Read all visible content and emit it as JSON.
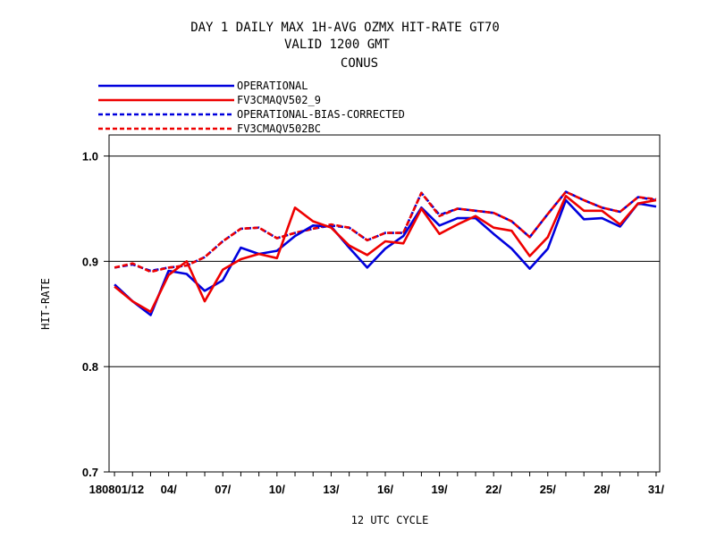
{
  "chart_data": {
    "type": "line",
    "title_lines": [
      "DAY 1 DAILY MAX   1H-AVG OZMX HIT-RATE GT70",
      "VALID 1200 GMT",
      "CONUS"
    ],
    "xlabel": "12 UTC CYCLE",
    "ylabel": "HIT-RATE",
    "ylim": [
      0.7,
      1.02
    ],
    "yticks": [
      0.7,
      0.8,
      0.9,
      1.0
    ],
    "ytick_labels": [
      "0.7",
      "0.8",
      "0.9",
      "1.0"
    ],
    "xlim": [
      0.7,
      31.2
    ],
    "xticks": [
      1,
      4,
      7,
      10,
      13,
      16,
      19,
      22,
      25,
      28,
      31
    ],
    "xtick_labels": [
      "180801/12",
      "04/",
      "07/",
      "10/",
      "13/",
      "16/",
      "19/",
      "22/",
      "25/",
      "28/",
      "31/"
    ],
    "grid": "horizontal",
    "legend_position": "top-left",
    "x": [
      1,
      2,
      3,
      4,
      5,
      6,
      7,
      8,
      9,
      10,
      11,
      12,
      13,
      14,
      15,
      16,
      17,
      18,
      19,
      20,
      21,
      22,
      23,
      24,
      25,
      26,
      27,
      28,
      29,
      30,
      31
    ],
    "series": [
      {
        "name": "OPERATIONAL",
        "color": "#0000dd",
        "dash": "solid",
        "values": [
          0.878,
          0.862,
          0.849,
          0.891,
          0.888,
          0.872,
          0.882,
          0.913,
          0.907,
          0.91,
          0.924,
          0.934,
          0.933,
          0.913,
          0.894,
          0.912,
          0.924,
          0.951,
          0.934,
          0.941,
          0.941,
          0.926,
          0.912,
          0.893,
          0.912,
          0.958,
          0.94,
          0.941,
          0.933,
          0.955,
          0.952
        ]
      },
      {
        "name": "FV3CMAQV502_9",
        "color": "#ee0000",
        "dash": "solid",
        "values": [
          0.876,
          0.862,
          0.852,
          0.887,
          0.9,
          0.862,
          0.892,
          0.902,
          0.907,
          0.903,
          0.951,
          0.938,
          0.932,
          0.915,
          0.906,
          0.919,
          0.917,
          0.95,
          0.926,
          0.935,
          0.943,
          0.932,
          0.929,
          0.905,
          0.923,
          0.962,
          0.948,
          0.948,
          0.935,
          0.955,
          0.958
        ]
      },
      {
        "name": "OPERATIONAL-BIAS-CORRECTED",
        "color": "#0000dd",
        "dash": "dashed",
        "values": [
          0.894,
          0.897,
          0.891,
          0.894,
          0.896,
          0.904,
          0.919,
          0.931,
          0.932,
          0.922,
          0.927,
          0.931,
          0.934,
          0.932,
          0.92,
          0.927,
          0.927,
          0.965,
          0.944,
          0.95,
          0.948,
          0.946,
          0.938,
          0.923,
          0.945,
          0.966,
          0.958,
          0.951,
          0.947,
          0.961,
          0.958
        ]
      },
      {
        "name": "FV3CMAQV502BC",
        "color": "#ee0000",
        "dash": "dashed",
        "values": [
          0.894,
          0.898,
          0.89,
          0.894,
          0.896,
          0.904,
          0.919,
          0.931,
          0.932,
          0.922,
          0.927,
          0.931,
          0.935,
          0.932,
          0.92,
          0.927,
          0.927,
          0.965,
          0.943,
          0.95,
          0.948,
          0.946,
          0.938,
          0.923,
          0.945,
          0.966,
          0.958,
          0.951,
          0.947,
          0.961,
          0.959
        ]
      }
    ]
  }
}
